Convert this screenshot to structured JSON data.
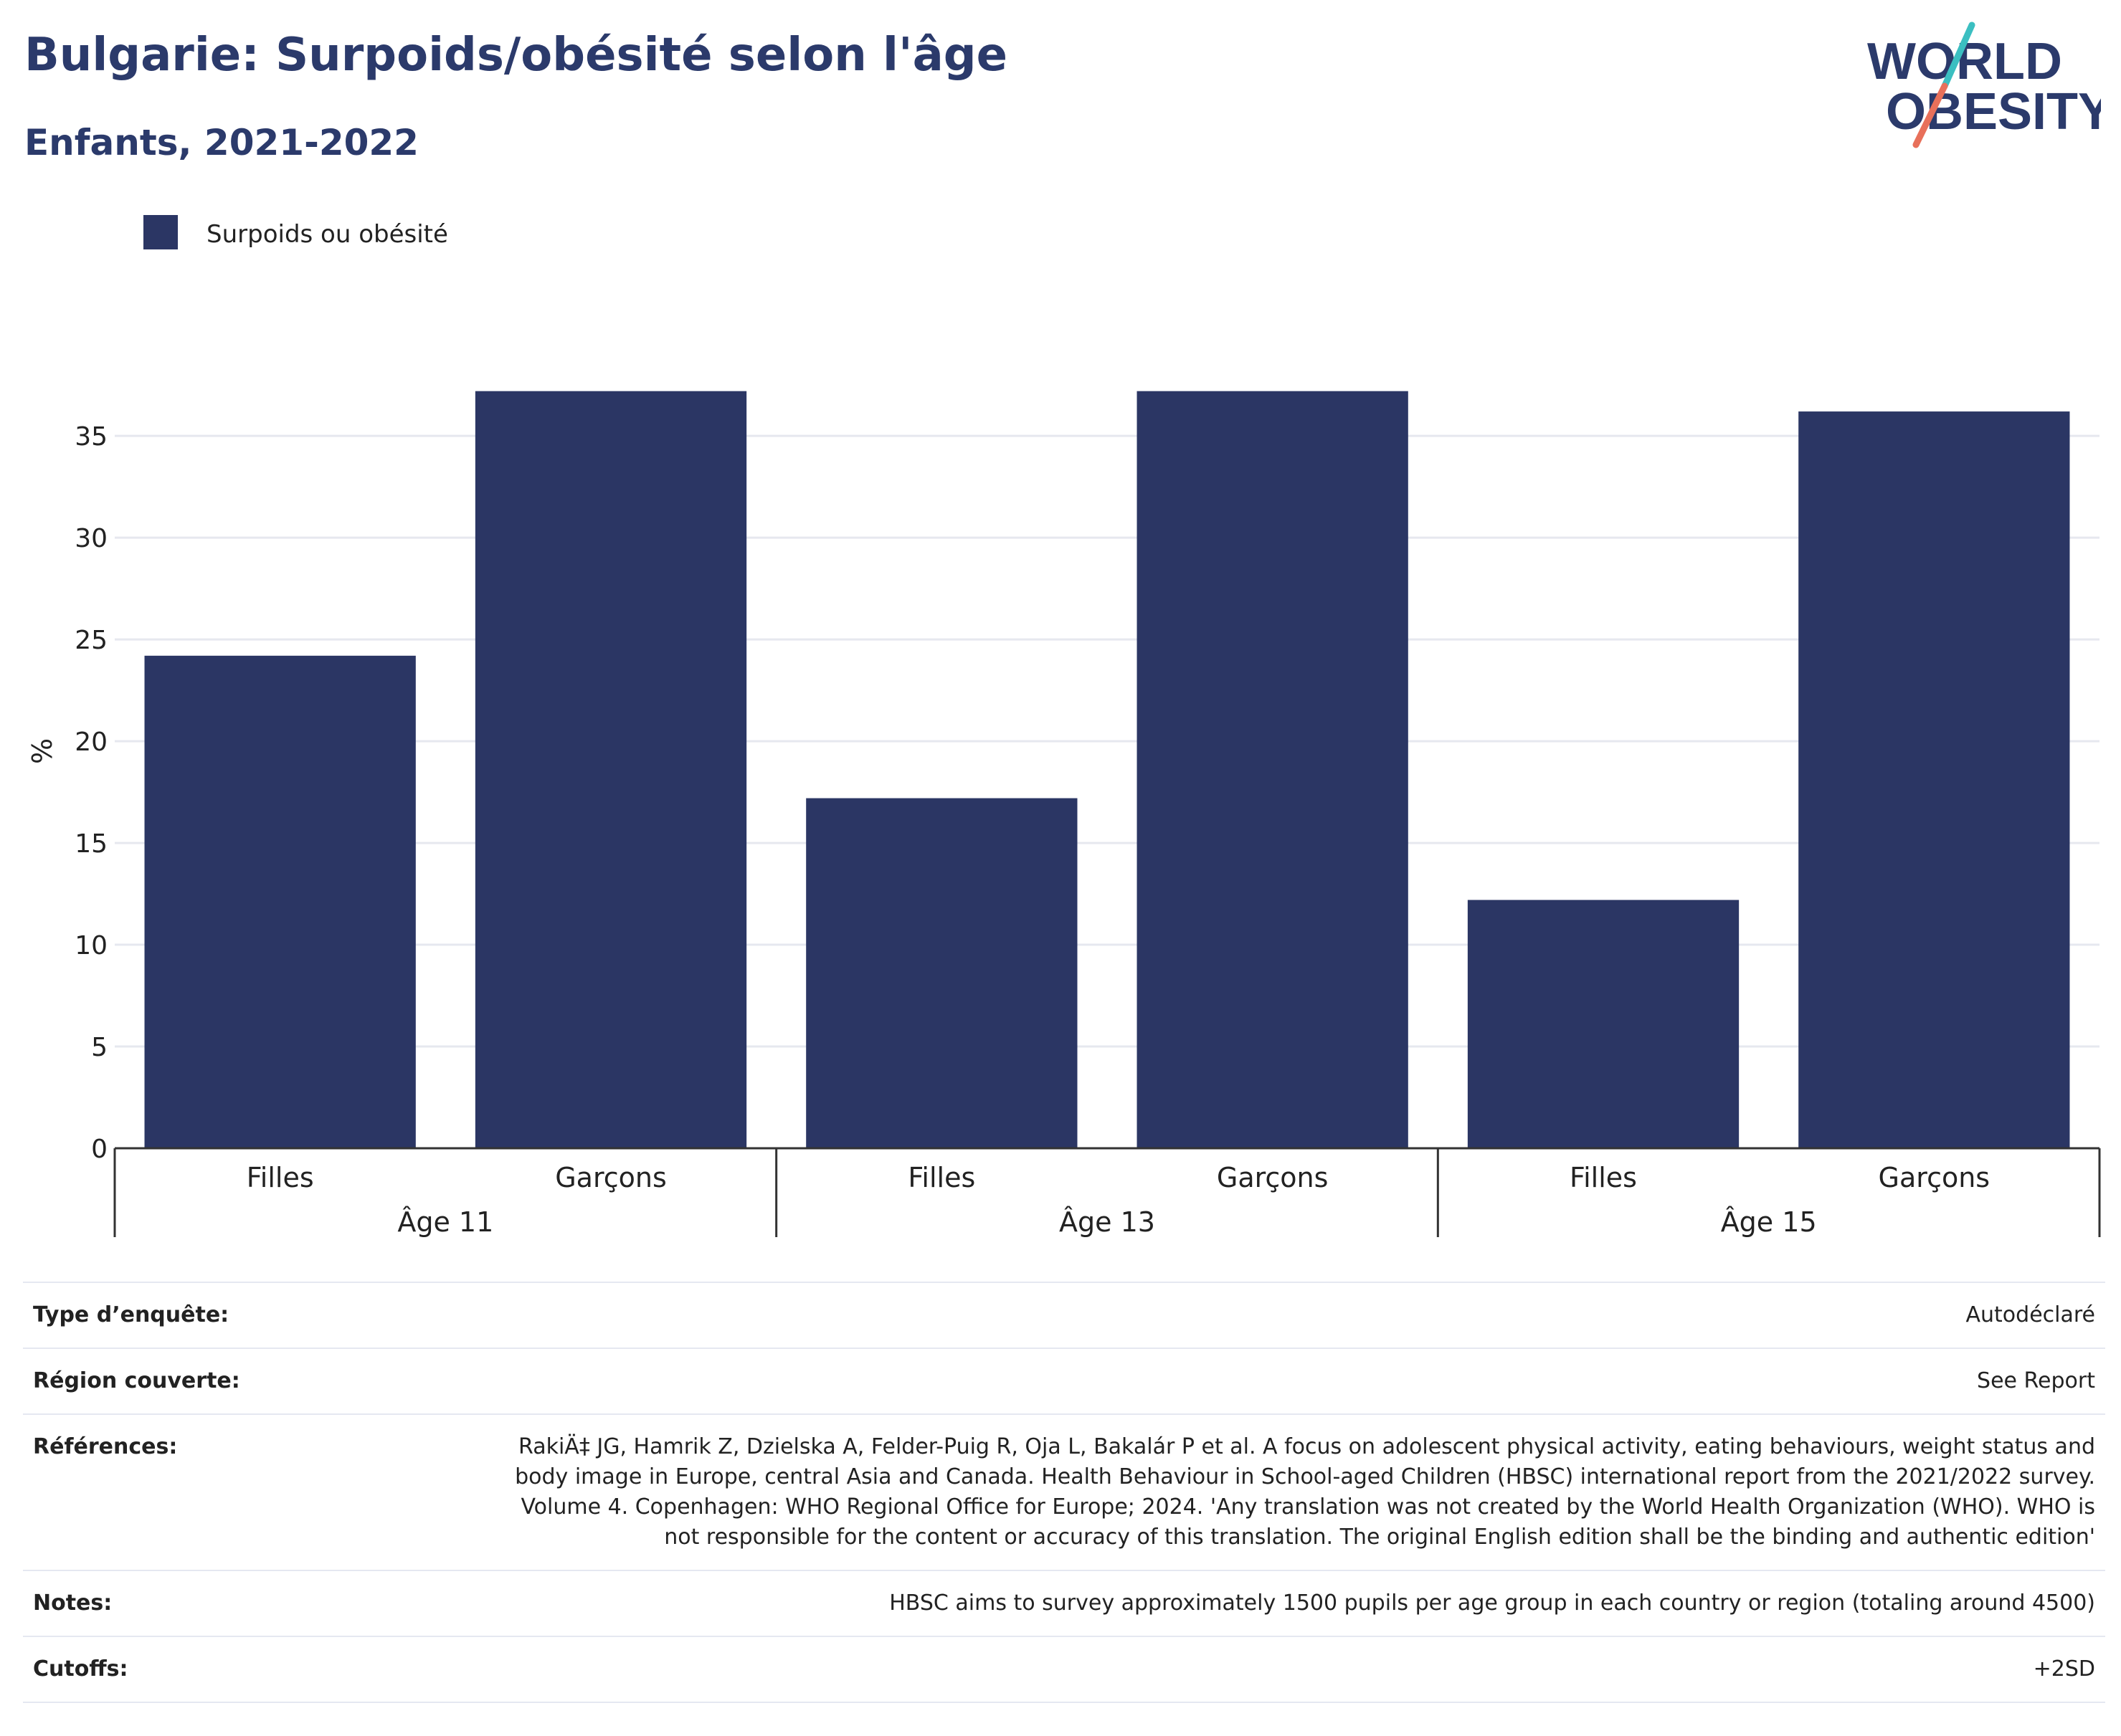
{
  "header": {
    "title": "Bulgarie: Surpoids/obésité selon l'âge",
    "subtitle": "Enfants, 2021-2022"
  },
  "logo": {
    "line1": "WORLD",
    "line2": "OBESITY",
    "colors": {
      "text": "#2b3a6b",
      "slash_top": "#3bbfc1",
      "slash_bottom": "#e8705a"
    }
  },
  "colors": {
    "bar": "#2b3664",
    "grid": "#e6e8ef",
    "axis": "#333333",
    "text": "#222222"
  },
  "chart_data": {
    "type": "bar",
    "title": "Bulgarie: Surpoids/obésité selon l'âge",
    "subtitle": "Enfants, 2021-2022",
    "ylabel": "%",
    "ylim": [
      0,
      37.4
    ],
    "yticks": [
      0,
      5,
      10,
      15,
      20,
      25,
      30,
      35
    ],
    "grid": true,
    "legend_position": "top-left",
    "groups": [
      "Âge 11",
      "Âge 13",
      "Âge 15"
    ],
    "categories": [
      "Filles",
      "Garçons",
      "Filles",
      "Garçons",
      "Filles",
      "Garçons"
    ],
    "series": [
      {
        "name": "Surpoids ou obésité",
        "values": [
          24.2,
          37.2,
          17.2,
          37.2,
          12.2,
          36.2
        ]
      }
    ]
  },
  "info": [
    {
      "label": "Type d’enquête:",
      "value": "Autodéclaré"
    },
    {
      "label": "Région couverte:",
      "value": "See Report"
    },
    {
      "label": "Références:",
      "value": "RakiÄ‡ JG, Hamrik Z, Dzielska A, Felder-Puig R, Oja L, Bakalár P et al. A focus on adolescent physical activity, eating behaviours, weight status and body image in Europe, central Asia and Canada. Health Behaviour in School-aged Children (HBSC) international report from the 2021/2022 survey. Volume 4. Copenhagen: WHO Regional Office for Europe; 2024. 'Any translation was not created by the World Health Organization (WHO). WHO is not responsible for the content or accuracy of this translation. The original English edition shall be the binding and authentic edition'"
    },
    {
      "label": "Notes:",
      "value": "HBSC aims to survey approximately 1500 pupils per age group in each country or region (totaling around 4500)"
    },
    {
      "label": "Cutoffs:",
      "value": "+2SD"
    }
  ]
}
